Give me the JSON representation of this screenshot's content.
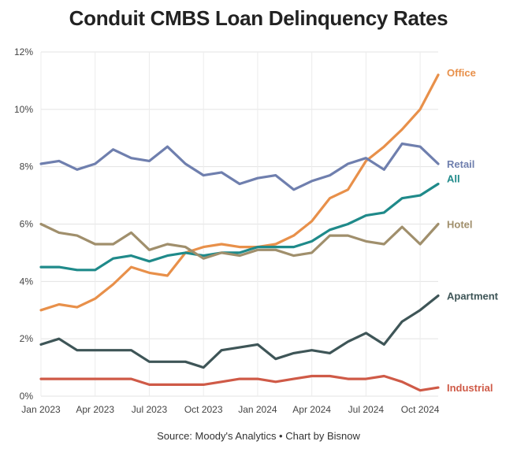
{
  "chart_data": {
    "type": "line",
    "title": "Conduit CMBS Loan Delinquency Rates",
    "source": "Source: Moody's Analytics • Chart by Bisnow",
    "xlabel": "",
    "ylabel": "",
    "ylim": [
      0,
      12
    ],
    "yticks": [
      "0%",
      "2%",
      "4%",
      "6%",
      "8%",
      "10%",
      "12%"
    ],
    "xticks": [
      "Jan 2023",
      "Apr 2023",
      "Jul 2023",
      "Oct 2023",
      "Jan 2024",
      "Apr 2024",
      "Jul 2024",
      "Oct 2024"
    ],
    "categories": [
      "Jan 2023",
      "Feb 2023",
      "Mar 2023",
      "Apr 2023",
      "May 2023",
      "Jun 2023",
      "Jul 2023",
      "Aug 2023",
      "Sep 2023",
      "Oct 2023",
      "Nov 2023",
      "Dec 2023",
      "Jan 2024",
      "Feb 2024",
      "Mar 2024",
      "Apr 2024",
      "May 2024",
      "Jun 2024",
      "Jul 2024",
      "Aug 2024",
      "Sep 2024",
      "Oct 2024",
      "Nov 2024"
    ],
    "series": [
      {
        "name": "Office",
        "color": "#e8904a",
        "values": [
          3.0,
          3.2,
          3.1,
          3.4,
          3.9,
          4.5,
          4.3,
          4.2,
          5.0,
          5.2,
          5.3,
          5.2,
          5.2,
          5.3,
          5.6,
          6.1,
          6.9,
          7.2,
          8.2,
          8.7,
          9.3,
          10.0,
          11.2
        ]
      },
      {
        "name": "Retail",
        "color": "#6f7fae",
        "values": [
          8.1,
          8.2,
          7.9,
          8.1,
          8.6,
          8.3,
          8.2,
          8.7,
          8.1,
          7.7,
          7.8,
          7.4,
          7.6,
          7.7,
          7.2,
          7.5,
          7.7,
          8.1,
          8.3,
          7.9,
          8.8,
          8.7,
          8.1
        ]
      },
      {
        "name": "All",
        "color": "#1f8a8a",
        "values": [
          4.5,
          4.5,
          4.4,
          4.4,
          4.8,
          4.9,
          4.7,
          4.9,
          5.0,
          4.9,
          5.0,
          5.0,
          5.2,
          5.2,
          5.2,
          5.4,
          5.8,
          6.0,
          6.3,
          6.4,
          6.9,
          7.0,
          7.4
        ]
      },
      {
        "name": "Hotel",
        "color": "#a08f6c",
        "values": [
          6.0,
          5.7,
          5.6,
          5.3,
          5.3,
          5.7,
          5.1,
          5.3,
          5.2,
          4.8,
          5.0,
          4.9,
          5.1,
          5.1,
          4.9,
          5.0,
          5.6,
          5.6,
          5.4,
          5.3,
          5.9,
          5.3,
          6.0
        ]
      },
      {
        "name": "Apartment",
        "color": "#3e5557",
        "values": [
          1.8,
          2.0,
          1.6,
          1.6,
          1.6,
          1.6,
          1.2,
          1.2,
          1.2,
          1.0,
          1.6,
          1.7,
          1.8,
          1.3,
          1.5,
          1.6,
          1.5,
          1.9,
          2.2,
          1.8,
          2.6,
          3.0,
          3.5
        ]
      },
      {
        "name": "Industrial",
        "color": "#cf5a47",
        "values": [
          0.6,
          0.6,
          0.6,
          0.6,
          0.6,
          0.6,
          0.4,
          0.4,
          0.4,
          0.4,
          0.5,
          0.6,
          0.6,
          0.5,
          0.6,
          0.7,
          0.7,
          0.6,
          0.6,
          0.7,
          0.5,
          0.2,
          0.3
        ]
      }
    ]
  }
}
